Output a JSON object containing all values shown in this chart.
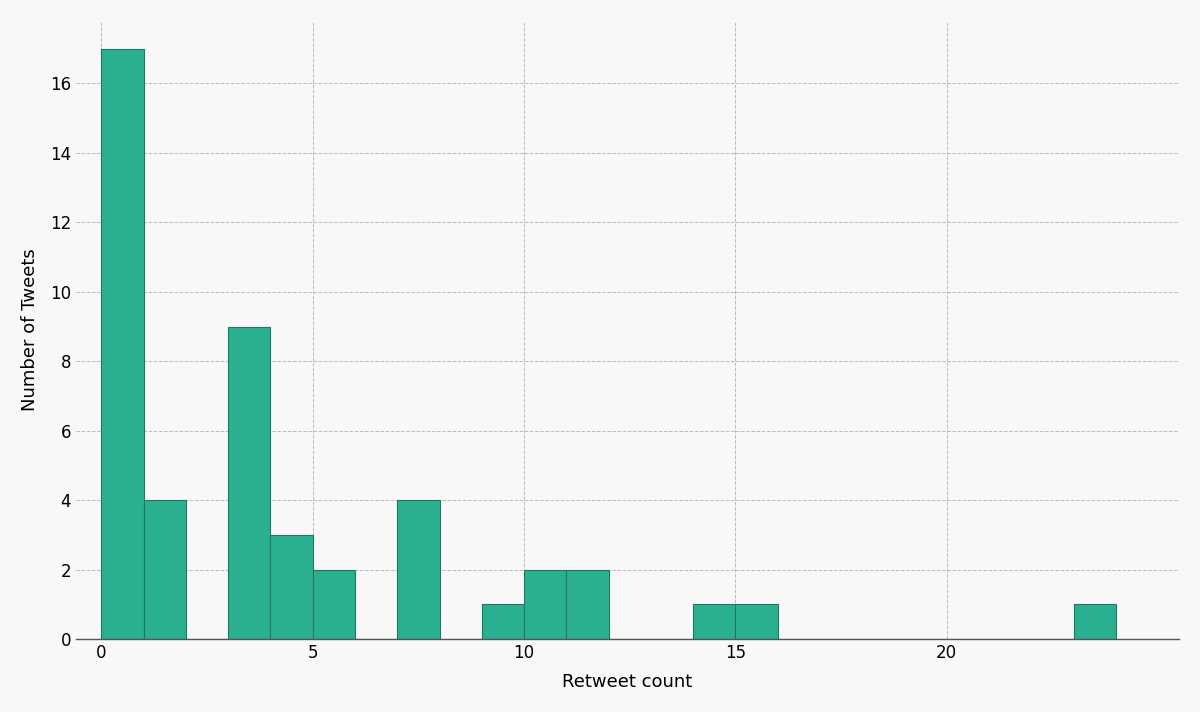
{
  "xlabel": "Retweet count",
  "ylabel": "Number of Tweets",
  "bar_color": "#2ab090",
  "bar_edgecolor": "#1a7a60",
  "background_color": "#f8f8f8",
  "grid_color": "#bbbbbb",
  "bar_positions": [
    0,
    1,
    2,
    3,
    4,
    5,
    6,
    7,
    8,
    9,
    10,
    11,
    12,
    13,
    14,
    15,
    16,
    17,
    18,
    19,
    20,
    21,
    22,
    23
  ],
  "bar_heights": [
    17,
    4,
    0,
    9,
    3,
    2,
    0,
    4,
    0,
    1,
    2,
    2,
    0,
    0,
    1,
    1,
    0,
    0,
    0,
    0,
    0,
    0,
    0,
    1
  ],
  "bar_width": 1.0,
  "xlim": [
    -0.6,
    25.5
  ],
  "ylim": [
    0,
    17.8
  ],
  "xticks": [
    0,
    5,
    10,
    15,
    20
  ],
  "yticks": [
    0,
    2,
    4,
    6,
    8,
    10,
    12,
    14,
    16
  ],
  "figsize": [
    12.0,
    7.12
  ],
  "dpi": 100,
  "tick_labelsize": 12,
  "axis_labelsize": 13
}
